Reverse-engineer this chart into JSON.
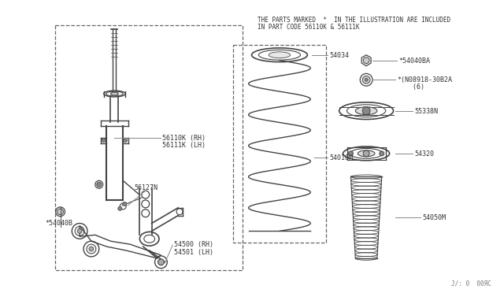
{
  "bg_color": "#ffffff",
  "line_color": "#444444",
  "text_color": "#333333",
  "leader_color": "#888888",
  "title_note_line1": "THE PARTS MARKED  *  IN THE ILLUSTRATION ARE INCLUDED",
  "title_note_line2": "IN PART CODE 56110K & 56111K",
  "footer_text": "J/: 0  00ЯC",
  "part_labels": {
    "56110K_RH": "56110K (RH)",
    "56111K_LH": "56111K (LH)",
    "56127N": "56127N",
    "54040B": "*54040B",
    "54500_RH": "54500 (RH)",
    "54501_LH": "54501 (LH)",
    "54034": "54034",
    "54010M": "54010M",
    "54040BA": "*54040BA",
    "08918_30B2A": "*(N08918-30B2A",
    "08918_sub": "    (6)",
    "55338N": "55338N",
    "54320": "54320",
    "54050M": "54050M"
  },
  "font_size_label": 6.0,
  "font_size_note": 5.5,
  "font_size_footer": 5.5
}
